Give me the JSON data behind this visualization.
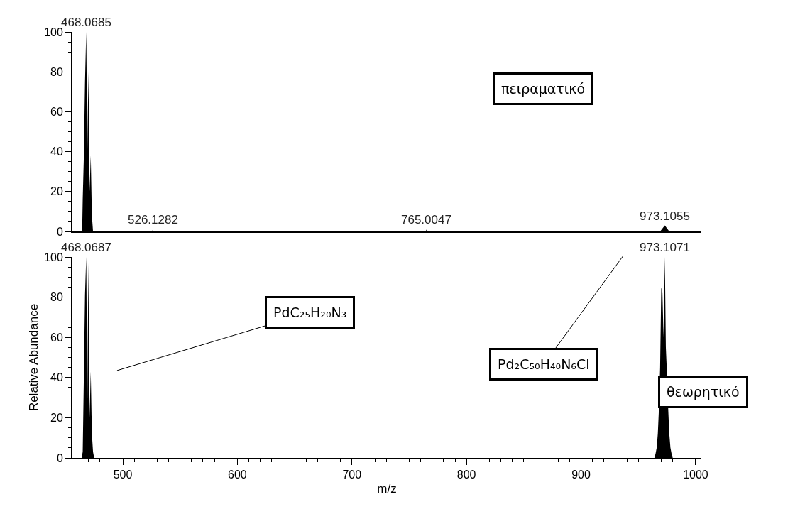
{
  "chart_data": [
    {
      "type": "area",
      "xlim": [
        456,
        1005
      ],
      "ylim": [
        0,
        100
      ],
      "xticks": [
        500,
        600,
        700,
        800,
        900,
        1000
      ],
      "yticks": [
        0,
        20,
        40,
        60,
        80,
        100
      ],
      "tick_labels": "y",
      "grid": false,
      "series": [
        {
          "color": "#000000",
          "x": [
            460,
            464.5,
            465,
            466,
            467,
            468.0685,
            469,
            470,
            471,
            472,
            473,
            474,
            525.6,
            526.1282,
            526.6,
            764.5,
            765.0047,
            765.5,
            969,
            973.1055,
            977,
            1005
          ],
          "values": [
            0,
            0,
            16,
            38,
            75,
            100,
            40,
            80,
            20,
            38,
            8,
            0,
            0,
            1,
            0,
            0,
            1,
            0,
            0,
            3,
            0,
            0
          ]
        }
      ],
      "annotations": [
        {
          "text": "468.0685",
          "x": 468.0685,
          "y": 100
        },
        {
          "text": "526.1282",
          "x": 526.1282,
          "y": 1
        },
        {
          "text": "765.0047",
          "x": 765.0047,
          "y": 1
        },
        {
          "text": "973.1055",
          "x": 973.1055,
          "y": 3
        },
        "πειραματικό"
      ]
    },
    {
      "type": "area",
      "xlabel": "m/z",
      "ylabel": "Relative Abundance",
      "xlim": [
        456,
        1005
      ],
      "ylim": [
        0,
        100
      ],
      "xticks": [
        500,
        600,
        700,
        800,
        900,
        1000
      ],
      "yticks": [
        0,
        20,
        40,
        60,
        80,
        100
      ],
      "grid": false,
      "series": [
        {
          "color": "#000000",
          "x": [
            460,
            464,
            465,
            466,
            467,
            468.0687,
            469,
            470,
            471,
            472,
            473,
            474,
            475,
            964,
            965,
            966,
            967,
            968,
            969,
            970,
            971,
            972,
            973.1071,
            974,
            975,
            976,
            977,
            978,
            979,
            980,
            1005
          ],
          "values": [
            0,
            0,
            3,
            41,
            81,
            100,
            27,
            97,
            20,
            43,
            12,
            3,
            0,
            0,
            2,
            5,
            12,
            25,
            45,
            85,
            82,
            60,
            100,
            55,
            42,
            25,
            12,
            5,
            2,
            0,
            0
          ]
        }
      ],
      "annotations": [
        {
          "text": "468.0687",
          "x": 468.0687,
          "y": 100
        },
        {
          "text": "973.1071",
          "x": 973.1071,
          "y": 100
        },
        "PdC₂₅H₂₀N₃",
        "Pd₂C₅₀H₄₀N₆Cl",
        "θεωρητικό"
      ]
    }
  ]
}
